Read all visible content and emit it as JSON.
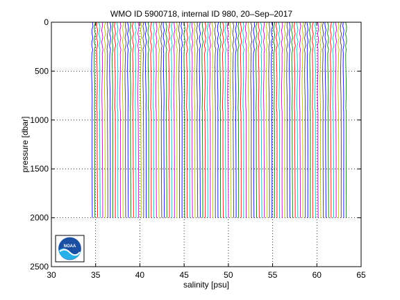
{
  "chart_data": {
    "type": "line",
    "title": "WMO ID 5900718, internal ID 980, 20–Sep–2017",
    "xlabel": "salinity [psu]",
    "ylabel": "pressure [dbar]",
    "xlim": [
      30,
      65
    ],
    "ylim": [
      0,
      2500
    ],
    "y_reversed": true,
    "x_ticks": [
      30,
      35,
      40,
      45,
      50,
      55,
      60,
      65
    ],
    "y_ticks": [
      0,
      500,
      1000,
      1500,
      2000,
      2500
    ],
    "grid": true,
    "grid_style": "dotted",
    "legend": "none",
    "offset_profiles": {
      "description_of_layout": "many salinity profiles, each horizontally offset from the previous",
      "profile_count": 100,
      "first_profile_base_salinity": 34.6,
      "offset_step": 0.29,
      "pressure_min": 0,
      "pressure_max": 2000,
      "colors": [
        "#0000ff",
        "#008000",
        "#ff0000",
        "#00bfbf",
        "#bf00bf",
        "#bfbf00",
        "#404040"
      ]
    }
  },
  "logo": {
    "text": "NOAA"
  }
}
